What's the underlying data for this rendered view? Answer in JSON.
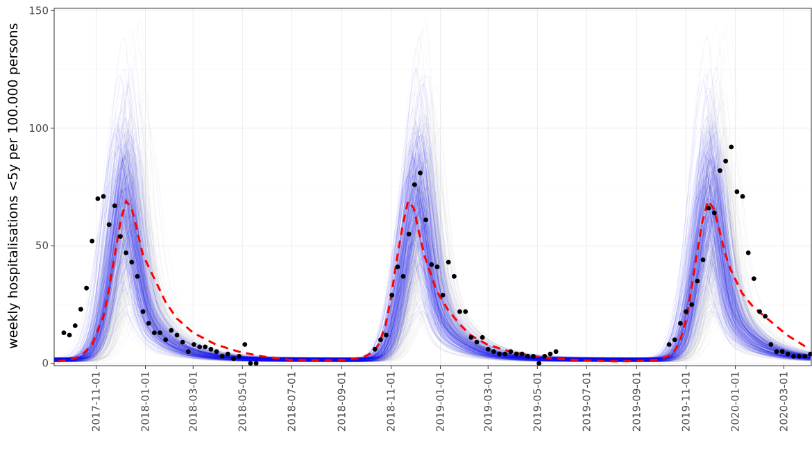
{
  "chart_data": {
    "type": "line",
    "title": "",
    "xlabel": "",
    "ylabel": "weekly hospitalisations <5y per 100.000 persons",
    "xlim": [
      "2017-09-10",
      "2020-04-04"
    ],
    "ylim": [
      -1,
      151
    ],
    "y_ticks": [
      0,
      50,
      100,
      150
    ],
    "x_ticks": [
      "2017-11-01",
      "2018-01-01",
      "2018-03-01",
      "2018-05-01",
      "2018-07-01",
      "2018-09-01",
      "2018-11-01",
      "2019-01-01",
      "2019-03-01",
      "2019-05-01",
      "2019-07-01",
      "2019-09-01",
      "2019-11-01",
      "2020-01-01",
      "2020-03-01"
    ],
    "grid": true,
    "legend": "none",
    "colors": {
      "blue_trajectories": "#0000ff",
      "grey_trajectories": "#bebebe",
      "median": "#ff0000",
      "observed": "#000000",
      "grid": "#ebebeb",
      "tick_text": "#4d4d4d"
    },
    "series": [
      {
        "style": "dashed-red-line",
        "x": [
          "2017-09-15",
          "2017-09-29",
          "2017-10-13",
          "2017-10-27",
          "2017-11-10",
          "2017-11-17",
          "2017-11-24",
          "2017-12-01",
          "2017-12-08",
          "2017-12-15",
          "2017-12-22",
          "2017-12-29",
          "2018-01-12",
          "2018-01-26",
          "2018-02-09",
          "2018-03-01",
          "2018-03-29",
          "2018-04-26",
          "2018-05-24",
          "2018-06-28",
          "2018-08-09",
          "2018-09-06",
          "2018-09-27",
          "2018-10-11",
          "2018-10-18",
          "2018-10-25",
          "2018-11-01",
          "2018-11-08",
          "2018-11-15",
          "2018-11-22",
          "2018-11-29",
          "2018-12-06",
          "2018-12-13",
          "2018-12-20",
          "2018-12-27",
          "2019-01-10",
          "2019-01-24",
          "2019-02-07",
          "2019-02-28",
          "2019-03-28",
          "2019-04-25",
          "2019-05-23",
          "2019-06-27",
          "2019-08-08",
          "2019-09-05",
          "2019-09-26",
          "2019-10-10",
          "2019-10-17",
          "2019-10-24",
          "2019-10-31",
          "2019-11-07",
          "2019-11-14",
          "2019-11-21",
          "2019-11-28",
          "2019-12-05",
          "2019-12-12",
          "2019-12-19",
          "2019-12-26",
          "2020-01-09",
          "2020-01-23",
          "2020-02-06",
          "2020-02-20",
          "2020-03-05",
          "2020-03-19",
          "2020-04-02"
        ],
        "y": [
          0.8,
          1.5,
          3,
          8,
          20,
          32,
          46,
          60,
          69,
          66,
          56,
          46,
          36,
          26,
          19,
          13,
          8,
          5,
          3,
          1.5,
          1.2,
          1.5,
          2.5,
          5,
          9,
          16,
          28,
          44,
          58,
          69,
          66,
          55,
          45,
          38,
          31,
          23,
          17,
          12,
          8,
          5,
          3,
          2,
          1.2,
          0.8,
          1,
          1.5,
          3,
          5,
          9,
          17,
          30,
          46,
          60,
          69,
          66,
          57,
          47,
          40,
          30,
          24,
          20,
          16,
          12,
          9,
          6
        ]
      },
      {
        "style": "black-points",
        "x": [
          "2017-09-22",
          "2017-09-29",
          "2017-10-06",
          "2017-10-13",
          "2017-10-20",
          "2017-10-27",
          "2017-11-03",
          "2017-11-10",
          "2017-11-17",
          "2017-11-24",
          "2017-12-01",
          "2017-12-08",
          "2017-12-15",
          "2017-12-22",
          "2017-12-29",
          "2018-01-05",
          "2018-01-12",
          "2018-01-19",
          "2018-01-26",
          "2018-02-02",
          "2018-02-09",
          "2018-02-16",
          "2018-02-23",
          "2018-03-02",
          "2018-03-09",
          "2018-03-16",
          "2018-03-23",
          "2018-03-30",
          "2018-04-06",
          "2018-04-13",
          "2018-04-20",
          "2018-04-27",
          "2018-05-04",
          "2018-05-11",
          "2018-05-18",
          "2018-10-12",
          "2018-10-19",
          "2018-10-26",
          "2018-11-02",
          "2018-11-09",
          "2018-11-16",
          "2018-11-23",
          "2018-11-30",
          "2018-12-07",
          "2018-12-14",
          "2018-12-21",
          "2018-12-28",
          "2019-01-04",
          "2019-01-11",
          "2019-01-18",
          "2019-01-25",
          "2019-02-01",
          "2019-02-08",
          "2019-02-15",
          "2019-02-22",
          "2019-03-01",
          "2019-03-08",
          "2019-03-15",
          "2019-03-22",
          "2019-03-29",
          "2019-04-05",
          "2019-04-12",
          "2019-04-19",
          "2019-04-26",
          "2019-05-03",
          "2019-05-10",
          "2019-05-17",
          "2019-05-24",
          "2019-10-11",
          "2019-10-18",
          "2019-10-25",
          "2019-11-01",
          "2019-11-08",
          "2019-11-15",
          "2019-11-22",
          "2019-11-29",
          "2019-12-06",
          "2019-12-13",
          "2019-12-20",
          "2019-12-27",
          "2020-01-03",
          "2020-01-10",
          "2020-01-17",
          "2020-01-24",
          "2020-01-31",
          "2020-02-07",
          "2020-02-14",
          "2020-02-21",
          "2020-02-28",
          "2020-03-06",
          "2020-03-13",
          "2020-03-20",
          "2020-03-27",
          "2020-04-03"
        ],
        "y": [
          13,
          12,
          16,
          23,
          32,
          52,
          70,
          71,
          59,
          67,
          54,
          47,
          43,
          37,
          22,
          17,
          13,
          13,
          10,
          14,
          12,
          9,
          5,
          8,
          7,
          7,
          6,
          5,
          3,
          4,
          2,
          3,
          8,
          0,
          0,
          6,
          10,
          12,
          29,
          41,
          37,
          55,
          76,
          81,
          61,
          42,
          41,
          29,
          43,
          37,
          22,
          22,
          11,
          9,
          11,
          6,
          5,
          4,
          4,
          5,
          4,
          4,
          3,
          3,
          0,
          3,
          4,
          5,
          8,
          10,
          17,
          22,
          25,
          35,
          44,
          66,
          64,
          82,
          86,
          92,
          73,
          71,
          47,
          36,
          22,
          20,
          8,
          5,
          5,
          4,
          3,
          3,
          3,
          4
        ]
      }
    ],
    "ensembles": [
      {
        "name": "blue",
        "runs": 240,
        "opacity": 0.06
      },
      {
        "name": "grey",
        "runs": 180,
        "opacity": 0.09
      }
    ]
  }
}
